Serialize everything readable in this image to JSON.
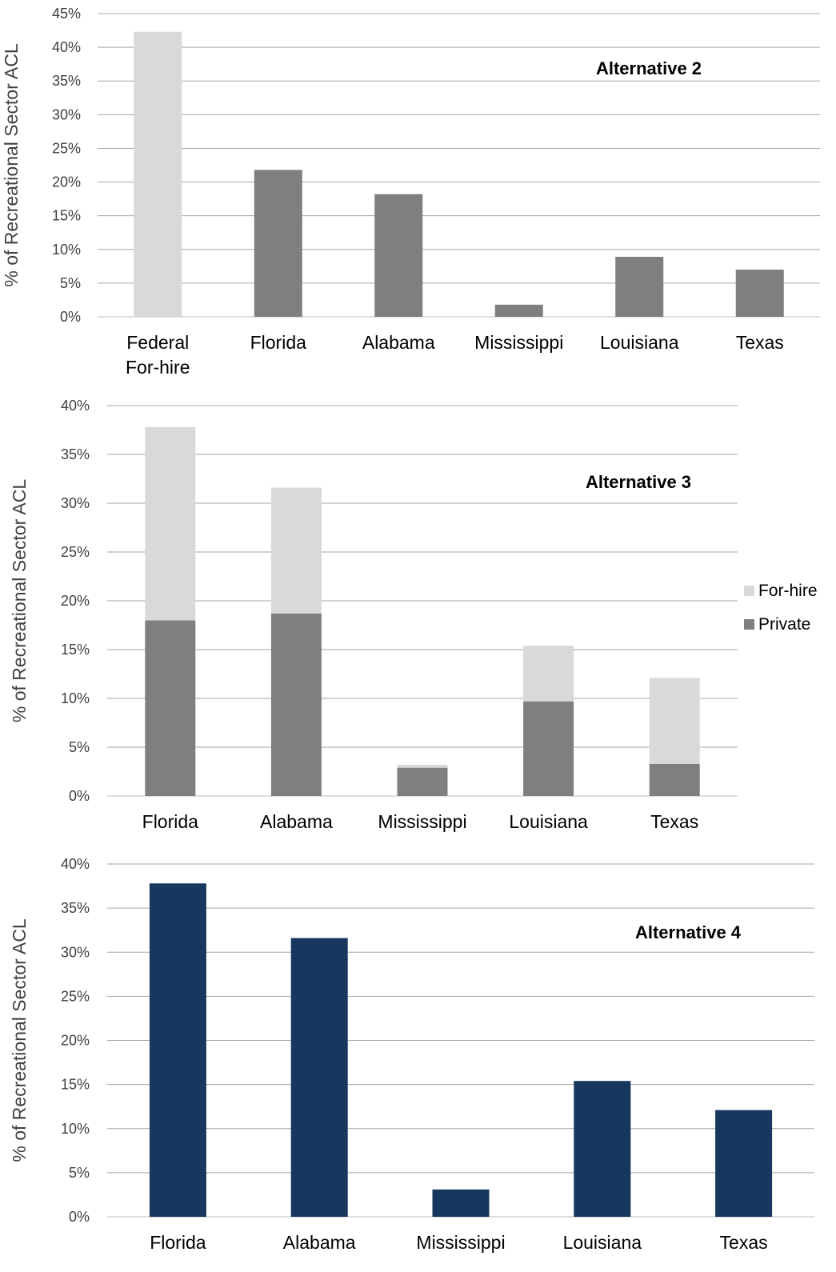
{
  "chart_data": [
    {
      "type": "bar",
      "title": "Alternative 2",
      "ylabel": "% of Recreational Sector ACL",
      "categories": [
        "Federal\nFor-hire",
        "Florida",
        "Alabama",
        "Mississippi",
        "Louisiana",
        "Texas"
      ],
      "values": [
        42.3,
        21.8,
        18.2,
        1.8,
        8.9,
        7.0
      ],
      "bar_colors": [
        "#d9d9d9",
        "#7f7f7f",
        "#7f7f7f",
        "#7f7f7f",
        "#7f7f7f",
        "#7f7f7f"
      ],
      "ylim": [
        0,
        45
      ],
      "yticks": [
        0,
        5,
        10,
        15,
        20,
        25,
        30,
        35,
        40,
        45
      ],
      "grid": true,
      "legend": "none"
    },
    {
      "type": "stacked-bar",
      "title": "Alternative 3",
      "ylabel": "% of Recreational Sector ACL",
      "categories": [
        "Florida",
        "Alabama",
        "Mississippi",
        "Louisiana",
        "Texas"
      ],
      "series": [
        {
          "name": "Private",
          "values": [
            18.0,
            18.7,
            2.9,
            9.7,
            3.3
          ],
          "color": "#7f7f7f"
        },
        {
          "name": "For-hire",
          "values": [
            19.8,
            12.9,
            0.3,
            5.7,
            8.8
          ],
          "color": "#d9d9d9"
        }
      ],
      "legend_order": [
        "For-hire",
        "Private"
      ],
      "ylim": [
        0,
        40
      ],
      "yticks": [
        0,
        5,
        10,
        15,
        20,
        25,
        30,
        35,
        40
      ],
      "grid": true,
      "legend": "right"
    },
    {
      "type": "bar",
      "title": "Alternative 4",
      "ylabel": "% of Recreational Sector ACL",
      "categories": [
        "Florida",
        "Alabama",
        "Mississippi",
        "Louisiana",
        "Texas"
      ],
      "values": [
        37.8,
        31.6,
        3.1,
        15.4,
        12.1
      ],
      "bar_colors": [
        "#17375e",
        "#17375e",
        "#17375e",
        "#17375e",
        "#17375e"
      ],
      "ylim": [
        0,
        40
      ],
      "yticks": [
        0,
        5,
        10,
        15,
        20,
        25,
        30,
        35,
        40
      ],
      "grid": true,
      "legend": "none"
    }
  ]
}
